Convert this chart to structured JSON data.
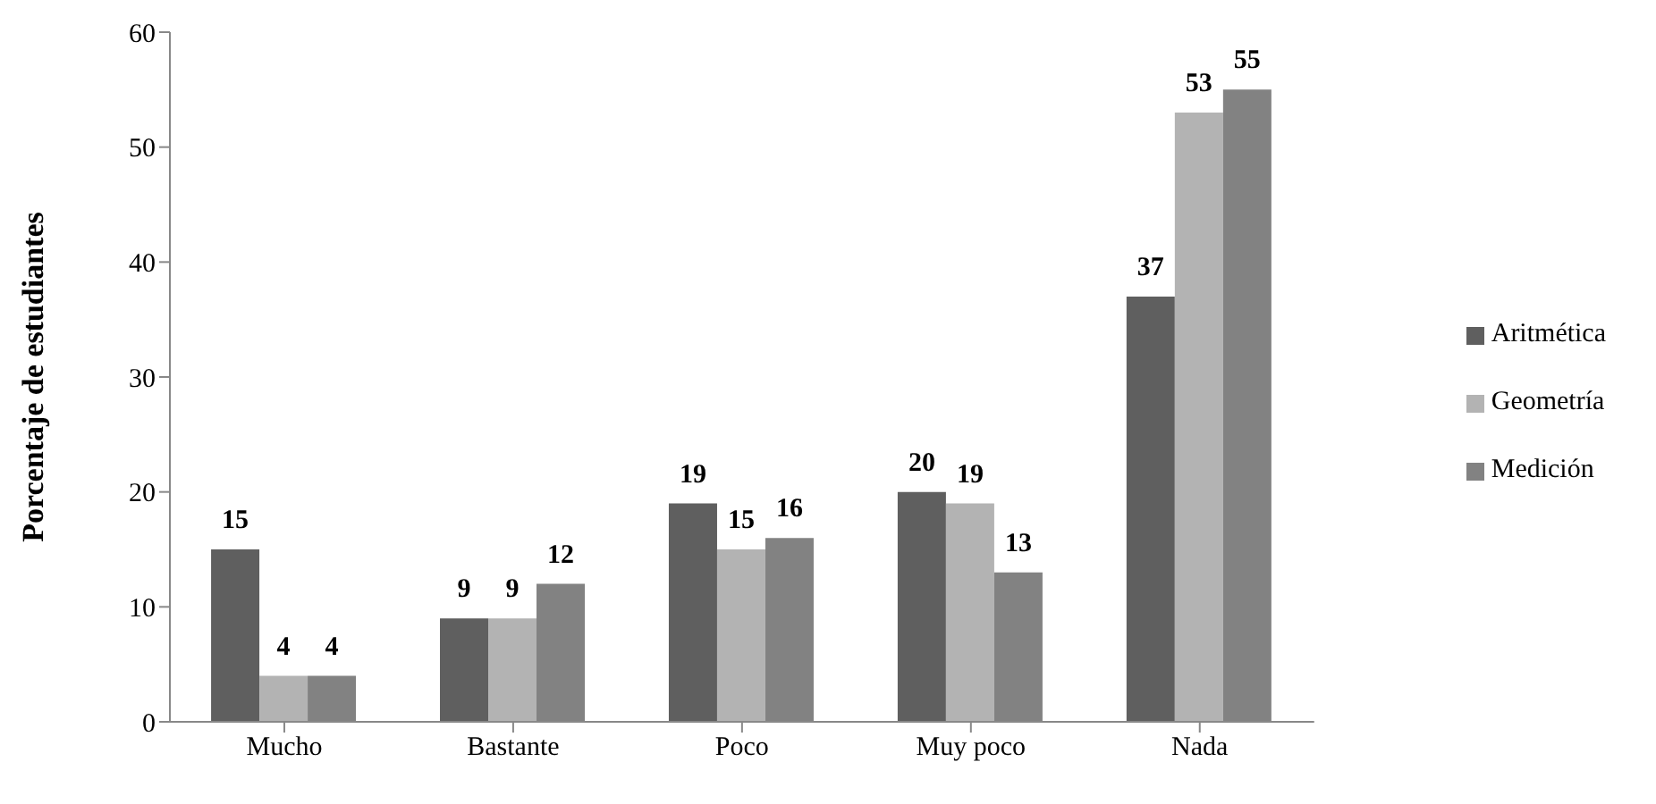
{
  "chart_data": {
    "type": "bar",
    "ylabel": "Porcentaje de estudiantes",
    "categories": [
      "Mucho",
      "Bastante",
      "Poco",
      "Muy poco",
      "Nada"
    ],
    "series": [
      {
        "name": "Aritmética",
        "color": "#5f5f5f",
        "values": [
          15,
          9,
          19,
          20,
          37
        ]
      },
      {
        "name": "Geometría",
        "color": "#b3b3b3",
        "values": [
          4,
          9,
          15,
          19,
          53
        ]
      },
      {
        "name": "Medición",
        "color": "#828282",
        "values": [
          4,
          12,
          16,
          13,
          55
        ]
      }
    ],
    "ylim": [
      0,
      60
    ],
    "yticks": [
      0,
      10,
      20,
      30,
      40,
      50,
      60
    ],
    "legend": "right",
    "data_labels": true
  }
}
